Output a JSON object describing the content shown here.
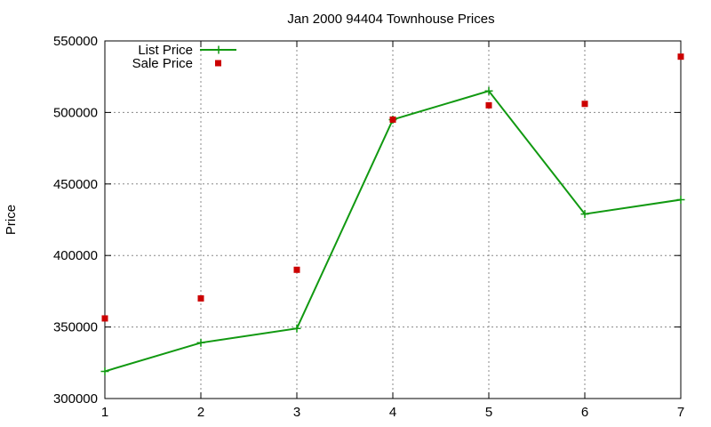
{
  "chart_data": {
    "type": "line",
    "title": "Jan 2000 94404 Townhouse Prices",
    "xlabel": "",
    "ylabel": "Price",
    "x": [
      1,
      2,
      3,
      4,
      5,
      6,
      7
    ],
    "xlim": [
      1,
      7
    ],
    "ylim": [
      300000,
      550000
    ],
    "x_ticks": [
      "1",
      "2",
      "3",
      "4",
      "5",
      "6",
      "7"
    ],
    "y_ticks": [
      "300000",
      "350000",
      "400000",
      "450000",
      "500000",
      "550000"
    ],
    "grid": true,
    "legend_position": "top-left",
    "series": [
      {
        "name": "List Price",
        "style": "line+cross-markers",
        "color": "#119911",
        "values": [
          319000,
          339000,
          349000,
          495000,
          515000,
          429000,
          439000
        ]
      },
      {
        "name": "Sale Price",
        "style": "square-markers",
        "color": "#cc0000",
        "values": [
          356000,
          370000,
          390000,
          495000,
          505000,
          506000,
          539000
        ]
      }
    ]
  }
}
